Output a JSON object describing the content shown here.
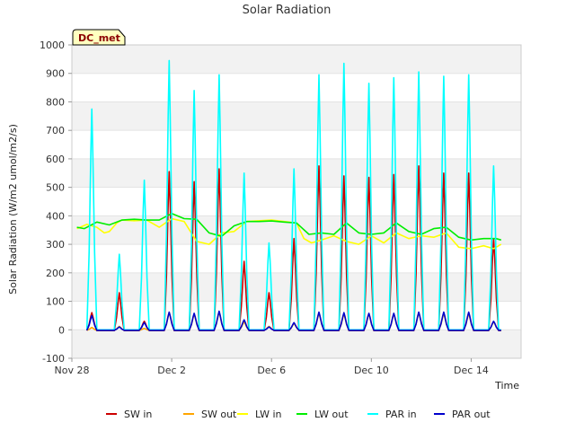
{
  "chart_data": {
    "type": "line",
    "title": "Solar Radiation",
    "xlabel": "Time",
    "ylabel": "Solar Radiation (W/m2 umol/m2/s)",
    "site_label": "DC_met",
    "x_unit": "days since Nov 28",
    "xlim": [
      0,
      18
    ],
    "ylim": [
      -100,
      1000
    ],
    "yticks": [
      -100,
      0,
      100,
      200,
      300,
      400,
      500,
      600,
      700,
      800,
      900,
      1000
    ],
    "xticks": [
      {
        "value": 0,
        "label": "Nov 28"
      },
      {
        "value": 4,
        "label": "Dec 2"
      },
      {
        "value": 8,
        "label": "Dec 6"
      },
      {
        "value": 12,
        "label": "Dec 10"
      },
      {
        "value": 16,
        "label": "Dec 14"
      }
    ],
    "grid_bands": true,
    "legend_position": "bottom",
    "series": [
      {
        "name": "SW in",
        "color": "#cc0000",
        "kind": "pulse",
        "base": -3,
        "peaks": [
          [
            0.8,
            60
          ],
          [
            1.9,
            130
          ],
          [
            2.9,
            30
          ],
          [
            3.9,
            555
          ],
          [
            4.9,
            520
          ],
          [
            5.9,
            565
          ],
          [
            6.9,
            240
          ],
          [
            7.9,
            130
          ],
          [
            8.9,
            320
          ],
          [
            9.9,
            575
          ],
          [
            10.9,
            540
          ],
          [
            11.9,
            535
          ],
          [
            12.9,
            545
          ],
          [
            13.9,
            575
          ],
          [
            14.9,
            550
          ],
          [
            15.9,
            550
          ],
          [
            16.9,
            320
          ]
        ]
      },
      {
        "name": "SW out",
        "color": "#ffa500",
        "kind": "pulse",
        "base": -2,
        "peaks": [
          [
            0.8,
            8
          ],
          [
            1.9,
            12
          ],
          [
            2.9,
            5
          ],
          [
            3.9,
            60
          ],
          [
            4.9,
            55
          ],
          [
            5.9,
            62
          ],
          [
            6.9,
            28
          ],
          [
            7.9,
            12
          ],
          [
            8.9,
            22
          ],
          [
            9.9,
            58
          ],
          [
            10.9,
            55
          ],
          [
            11.9,
            55
          ],
          [
            12.9,
            56
          ],
          [
            13.9,
            60
          ],
          [
            14.9,
            57
          ],
          [
            15.9,
            57
          ],
          [
            16.9,
            28
          ]
        ]
      },
      {
        "name": "LW in",
        "color": "#ffff00",
        "kind": "level",
        "x": [
          0.2,
          0.6,
          1.0,
          1.3,
          1.5,
          1.8,
          2.0,
          2.5,
          3.0,
          3.5,
          4.0,
          4.5,
          5.0,
          5.5,
          6.0,
          6.5,
          7.0,
          8.0,
          9.0,
          9.3,
          9.6,
          10.0,
          10.5,
          11.0,
          11.5,
          12.0,
          12.5,
          13.0,
          13.5,
          14.0,
          14.5,
          15.0,
          15.5,
          16.0,
          16.5,
          16.9,
          17.2
        ],
        "y": [
          355,
          370,
          360,
          340,
          345,
          375,
          385,
          383,
          385,
          360,
          390,
          380,
          310,
          300,
          340,
          345,
          380,
          385,
          375,
          320,
          305,
          315,
          330,
          310,
          300,
          330,
          305,
          340,
          320,
          330,
          325,
          340,
          290,
          285,
          295,
          285,
          300
        ]
      },
      {
        "name": "LW out",
        "color": "#00ee00",
        "kind": "level",
        "x": [
          0.2,
          0.5,
          1.0,
          1.5,
          2.0,
          2.5,
          3.0,
          3.5,
          4.0,
          4.5,
          5.0,
          5.5,
          6.0,
          6.5,
          7.0,
          7.5,
          8.0,
          8.5,
          9.0,
          9.5,
          10.0,
          10.5,
          11.0,
          11.5,
          12.0,
          12.5,
          13.0,
          13.5,
          14.0,
          14.5,
          15.0,
          15.5,
          16.0,
          16.5,
          17.0,
          17.2
        ],
        "y": [
          360,
          355,
          378,
          368,
          385,
          388,
          385,
          385,
          408,
          390,
          388,
          340,
          328,
          365,
          380,
          380,
          382,
          378,
          375,
          335,
          340,
          335,
          375,
          340,
          335,
          340,
          375,
          345,
          335,
          355,
          360,
          325,
          315,
          320,
          320,
          315
        ]
      },
      {
        "name": "PAR in",
        "color": "#00ffff",
        "kind": "pulse",
        "base": 0,
        "peaks": [
          [
            0.8,
            775
          ],
          [
            1.9,
            265
          ],
          [
            2.9,
            525
          ],
          [
            3.9,
            945
          ],
          [
            4.9,
            840
          ],
          [
            5.9,
            895
          ],
          [
            6.9,
            550
          ],
          [
            7.9,
            305
          ],
          [
            8.9,
            565
          ],
          [
            9.9,
            895
          ],
          [
            10.9,
            935
          ],
          [
            11.9,
            865
          ],
          [
            12.9,
            885
          ],
          [
            13.9,
            905
          ],
          [
            14.9,
            890
          ],
          [
            15.9,
            895
          ],
          [
            16.9,
            575
          ]
        ]
      },
      {
        "name": "PAR out",
        "color": "#0000cc",
        "kind": "pulse",
        "base": -2,
        "peaks": [
          [
            0.8,
            50
          ],
          [
            1.9,
            10
          ],
          [
            2.9,
            25
          ],
          [
            3.9,
            62
          ],
          [
            4.9,
            58
          ],
          [
            5.9,
            65
          ],
          [
            6.9,
            35
          ],
          [
            7.9,
            10
          ],
          [
            8.9,
            25
          ],
          [
            9.9,
            62
          ],
          [
            10.9,
            60
          ],
          [
            11.9,
            58
          ],
          [
            12.9,
            58
          ],
          [
            13.9,
            62
          ],
          [
            14.9,
            62
          ],
          [
            15.9,
            62
          ],
          [
            16.9,
            30
          ]
        ]
      }
    ]
  }
}
